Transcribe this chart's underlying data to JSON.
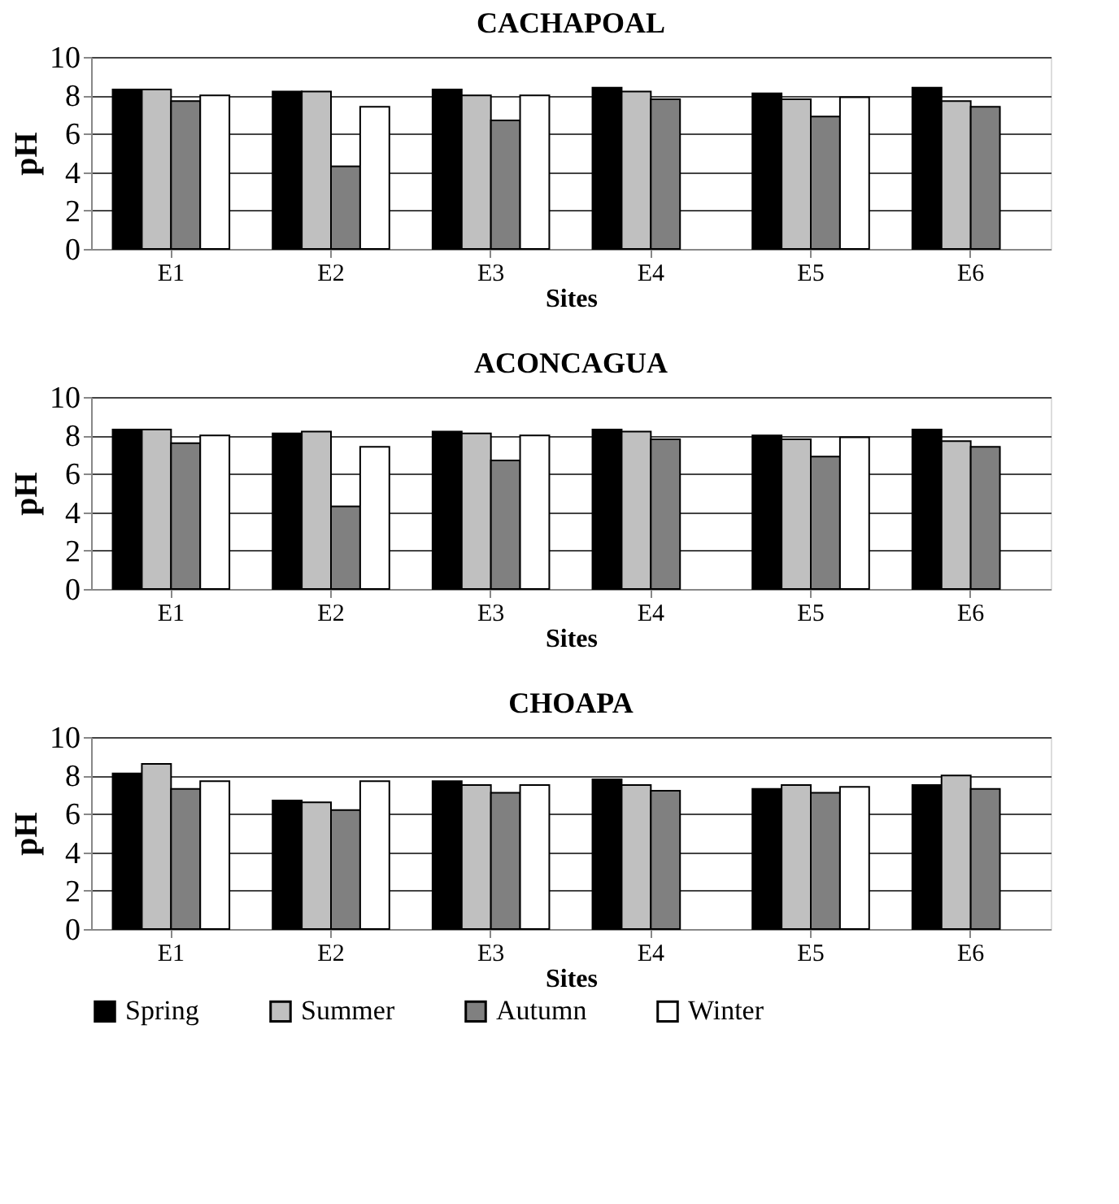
{
  "chart_data": [
    {
      "type": "bar",
      "title": "CACHAPOAL",
      "xlabel": "Sites",
      "ylabel": "pH",
      "categories": [
        "E1",
        "E2",
        "E3",
        "E4",
        "E5",
        "E6"
      ],
      "ylim": [
        0,
        10
      ],
      "yticks": [
        0,
        2,
        4,
        6,
        8,
        10
      ],
      "grid": "y",
      "series": [
        {
          "color": "#000000",
          "values": [
            8.3,
            8.2,
            8.3,
            8.4,
            8.1,
            8.4
          ]
        },
        {
          "color": "#c0c0c0",
          "values": [
            8.3,
            8.2,
            8.0,
            8.2,
            7.8,
            7.7
          ]
        },
        {
          "color": "#808080",
          "values": [
            7.7,
            4.3,
            6.7,
            7.8,
            6.9,
            7.4
          ]
        },
        {
          "color": "#ffffff",
          "values": [
            8.0,
            7.4,
            8.0,
            null,
            7.9,
            null
          ]
        }
      ]
    },
    {
      "type": "bar",
      "title": "ACONCAGUA",
      "xlabel": "Sites",
      "ylabel": "pH",
      "categories": [
        "E1",
        "E2",
        "E3",
        "E4",
        "E5",
        "E6"
      ],
      "ylim": [
        0,
        10
      ],
      "yticks": [
        0,
        2,
        4,
        6,
        8,
        10
      ],
      "grid": "y",
      "series": [
        {
          "color": "#000000",
          "values": [
            8.3,
            8.1,
            8.2,
            8.3,
            8.0,
            8.3
          ]
        },
        {
          "color": "#c0c0c0",
          "values": [
            8.3,
            8.2,
            8.1,
            8.2,
            7.8,
            7.7
          ]
        },
        {
          "color": "#808080",
          "values": [
            7.6,
            4.3,
            6.7,
            7.8,
            6.9,
            7.4
          ]
        },
        {
          "color": "#ffffff",
          "values": [
            8.0,
            7.4,
            8.0,
            null,
            7.9,
            null
          ]
        }
      ]
    },
    {
      "type": "bar",
      "title": "CHOAPA",
      "xlabel": "Sites",
      "ylabel": "pH",
      "categories": [
        "E1",
        "E2",
        "E3",
        "E4",
        "E5",
        "E6"
      ],
      "ylim": [
        0,
        10
      ],
      "yticks": [
        0,
        2,
        4,
        6,
        8,
        10
      ],
      "grid": "y",
      "legend": "bottom",
      "series": [
        {
          "name": "Spring",
          "color": "#000000",
          "values": [
            8.1,
            6.7,
            7.7,
            7.8,
            7.3,
            7.5
          ]
        },
        {
          "name": "Summer",
          "color": "#c0c0c0",
          "values": [
            8.6,
            6.6,
            7.5,
            7.5,
            7.5,
            8.0
          ]
        },
        {
          "name": "Autumn",
          "color": "#808080",
          "values": [
            7.3,
            6.2,
            7.1,
            7.2,
            7.1,
            7.3
          ]
        },
        {
          "name": "Winter",
          "color": "#ffffff",
          "values": [
            7.7,
            7.7,
            7.5,
            null,
            7.4,
            null
          ]
        }
      ]
    }
  ]
}
